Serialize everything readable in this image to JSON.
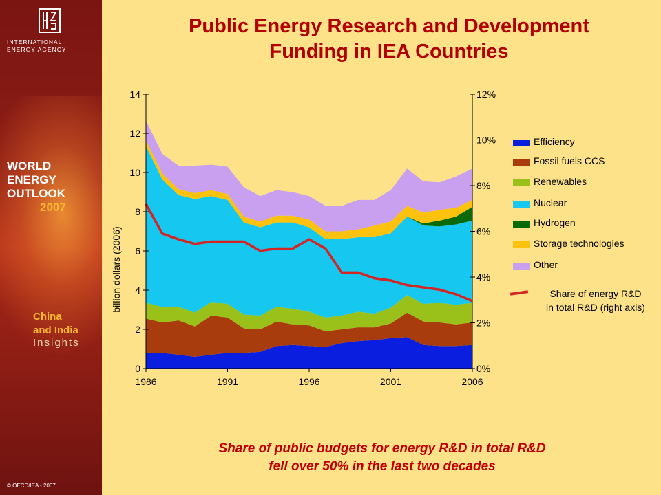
{
  "sidebar": {
    "org_line1": "INTERNATIONAL",
    "org_line2": "ENERGY AGENCY",
    "weo_line1": "WORLD",
    "weo_line2": "ENERGY",
    "weo_line3": "OUTLOOK",
    "weo_year": "2007",
    "insight_line1": "China",
    "insight_line2": "and India",
    "insight_line3": "Insights",
    "copyright": "© OECD/IEA - 2007"
  },
  "slide": {
    "title_line1": "Public Energy Research and Development",
    "title_line2": "Funding in IEA Countries",
    "caption_line1": "Share of public budgets for energy R&D in total R&D",
    "caption_line2": "fell over 50% in the last two decades"
  },
  "chart_data": {
    "type": "area",
    "x": [
      1986,
      1987,
      1988,
      1989,
      1990,
      1991,
      1992,
      1993,
      1994,
      1995,
      1996,
      1997,
      1998,
      1999,
      2000,
      2001,
      2002,
      2003,
      2004,
      2005,
      2006
    ],
    "xticks": [
      "1986",
      "1991",
      "1996",
      "2001",
      "2006"
    ],
    "ylabel": "billion dollars (2006)",
    "ylim": [
      0,
      14
    ],
    "yticks": [
      "0",
      "2",
      "4",
      "6",
      "8",
      "10",
      "12",
      "14"
    ],
    "y2lim": [
      0,
      12
    ],
    "y2ticks": [
      "0%",
      "2%",
      "4%",
      "6%",
      "8%",
      "10%",
      "12%"
    ],
    "series": [
      {
        "name": "Efficiency",
        "color": "#0a1ee0",
        "values": [
          0.8,
          0.8,
          0.7,
          0.6,
          0.7,
          0.8,
          0.8,
          0.85,
          1.15,
          1.2,
          1.15,
          1.1,
          1.3,
          1.4,
          1.45,
          1.55,
          1.6,
          1.2,
          1.15,
          1.15,
          1.2
        ]
      },
      {
        "name": "Fossil fuels CCS",
        "color": "#a83c0c",
        "values": [
          1.75,
          1.55,
          1.75,
          1.55,
          2.0,
          1.8,
          1.25,
          1.15,
          1.25,
          1.05,
          1.05,
          0.8,
          0.7,
          0.7,
          0.65,
          0.75,
          1.25,
          1.2,
          1.2,
          1.1,
          1.15
        ]
      },
      {
        "name": "Renewables",
        "color": "#99c11a",
        "values": [
          0.8,
          0.8,
          0.7,
          0.7,
          0.7,
          0.7,
          0.7,
          0.7,
          0.75,
          0.8,
          0.7,
          0.7,
          0.7,
          0.8,
          0.7,
          0.8,
          0.9,
          0.9,
          1.0,
          1.0,
          1.0
        ]
      },
      {
        "name": "Nuclear",
        "color": "#16c7f0",
        "values": [
          8.0,
          6.5,
          5.7,
          5.8,
          5.4,
          5.3,
          4.7,
          4.5,
          4.3,
          4.4,
          4.3,
          4.0,
          3.9,
          3.8,
          3.9,
          3.8,
          4.0,
          4.0,
          3.9,
          4.1,
          4.2
        ]
      },
      {
        "name": "Hydrogen",
        "color": "#0a6a0a",
        "values": [
          0,
          0,
          0,
          0,
          0,
          0,
          0,
          0,
          0,
          0,
          0,
          0,
          0,
          0,
          0,
          0,
          0,
          0.1,
          0.3,
          0.4,
          0.7
        ]
      },
      {
        "name": "Storage technologies",
        "color": "#fcc20e",
        "values": [
          0.3,
          0.3,
          0.3,
          0.3,
          0.3,
          0.3,
          0.3,
          0.3,
          0.35,
          0.35,
          0.4,
          0.4,
          0.4,
          0.4,
          0.6,
          0.6,
          0.55,
          0.55,
          0.55,
          0.45,
          0.35
        ]
      },
      {
        "name": "Other",
        "color": "#c9a0f0",
        "values": [
          1.0,
          1.0,
          1.2,
          1.4,
          1.3,
          1.4,
          1.5,
          1.3,
          1.3,
          1.2,
          1.2,
          1.3,
          1.3,
          1.5,
          1.3,
          1.6,
          1.9,
          1.6,
          1.4,
          1.6,
          1.6
        ]
      }
    ],
    "share_series": {
      "name": "Share of energy R&D in total R&D (right axis)",
      "color": "#d42424",
      "axis": "right",
      "values": [
        7.2,
        5.9,
        5.65,
        5.45,
        5.55,
        5.55,
        5.55,
        5.15,
        5.25,
        5.25,
        5.65,
        5.25,
        4.2,
        4.2,
        3.95,
        3.85,
        3.65,
        3.55,
        3.45,
        3.25,
        2.95
      ]
    },
    "legend_position": "right",
    "grid": false
  }
}
